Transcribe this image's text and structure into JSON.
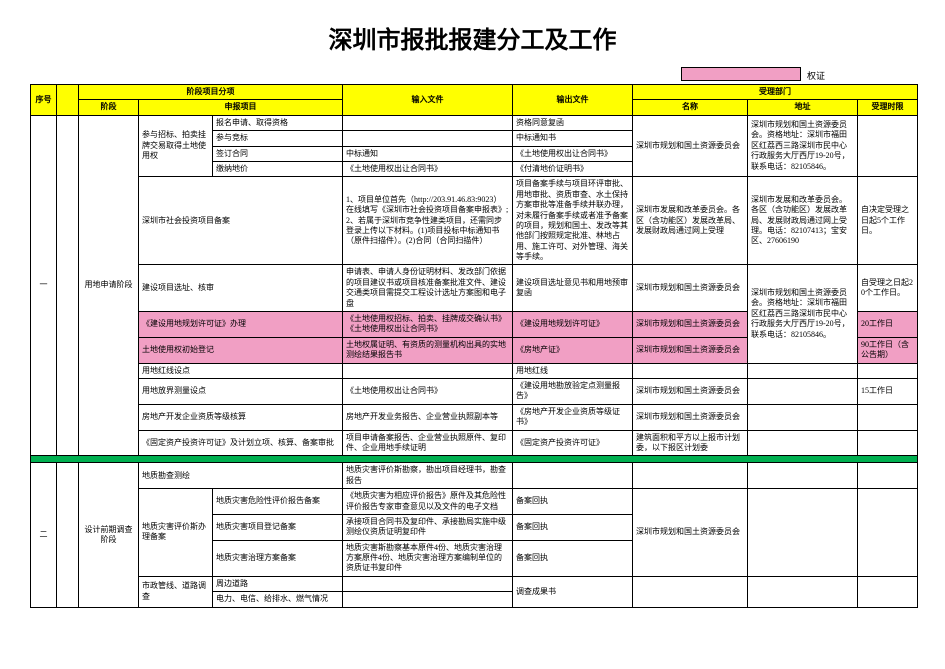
{
  "title": "深圳市报批报建分工及工作",
  "badge_label": "权证",
  "headers": {
    "seq": "序号",
    "stage_group": "阶段项目分项",
    "stage": "阶段",
    "item": "申报项目",
    "input": "输入文件",
    "output": "输出文件",
    "dept_group": "受理部门",
    "dept": "名称",
    "addr": "地址",
    "time": "受理时限"
  },
  "stage1": "用地申请阶段",
  "stage2": "设计前期调查阶段",
  "r1": {
    "sub": "参与招标、拍卖挂牌交易取得土地使用权",
    "item": "报名申请、取得资格",
    "output": "资格同意复函"
  },
  "r2": {
    "item": "参与竞标",
    "output": "中标通知书",
    "dept": "深圳市规划和国土资源委员会",
    "addr": "深圳市规划和国土资源委员会。资格地址：深圳市福田区红荔西三路深圳市民中心行政服务大厅西厅19-20号，联系电话：82105846。"
  },
  "r3": {
    "item": "签订合同",
    "input": "中标通知",
    "output": "《土地使用权出让合同书》"
  },
  "r4": {
    "item": "缴纳地价",
    "input": "《土地使用权出让合同书》",
    "output": "《付清地价证明书》"
  },
  "r5": {
    "item": "深圳市社会投资项目备案",
    "input": "1、项目单位首先（http://203.91.46.83:9023）在线填写《深圳市社会投资项目备案申报表》;2、若属于深圳市竞争性建类项目，还需同步登录上传以下材料。(1)项目投标中标通知书（原件扫描件）。(2)合同（合同扫描件）",
    "output": "项目备案手续与项目环评审批、用地审批、资质审查、水土保持方案审批等准备手续并联办理，对未履行备案手续或者准予备案的项目，规划和国土、发改等其他部门按照规定批准、林地占用、施工许可、对外管理、海关等手续。",
    "dept": "深圳市发展和改革委员会。各区（含功能区）发展改革局、发展财政局通过网上受理",
    "addr": "深圳市发展和改革委员会。各区（含功能区）发展改革局、发展财政局通过网上受理。电话：82107413；宝安区、27606190",
    "time": "自决定受理之日起5个工作日。"
  },
  "r6": {
    "item": "建设项目选址、核审",
    "input": "申请表、申请人身份证明材料、发改部门依据的项目建议书或项目核准备案批准文件、建设交通类项目需提交工程设计选址方案图和电子盘",
    "output": "建设项目选址意见书和用地预审复函",
    "dept": "深圳市规划和国土资源委员会",
    "addr": "深圳市规划和国土资源委员会。资格地址：深圳市福田区红荔西三路深圳市民中心行政服务大厅西厅19-20号，联系电话：82105846。",
    "time": "自受理之日起20个工作日。"
  },
  "r7": {
    "item": "《建设用地规划许可证》办理",
    "input": "《土地使用权招标、拍卖、挂牌成交确认书》《土地使用权出让合同书》",
    "output": "《建设用地规划许可证》",
    "dept": "深圳市规划和国土资源委员会",
    "time": "20工作日"
  },
  "r8": {
    "item": "土地使用权初始登记",
    "input": "土地权属证明、有资质的测量机构出具的实地测绘结果报告书",
    "output": "《房地产证》",
    "dept": "深圳市规划和国土资源委员会",
    "time": "90工作日（含公告期）"
  },
  "r9": {
    "item": "用地红线设点",
    "output": "用地红线"
  },
  "r10": {
    "item": "用地放界测量设点",
    "input": "《土地使用权出让合同书》",
    "output": "《建设用地勘放验定点测量报告》",
    "dept": "深圳市规划和国土资源委员会",
    "time": "15工作日"
  },
  "r11": {
    "item": "房地产开发企业资质等级核算",
    "input": "房地产开发业务报告、企业营业执照副本等",
    "output": "《房地产开发企业资质等级证书》",
    "dept": "深圳市规划和国土资源委员会"
  },
  "r12": {
    "item": "《固定资产投资许可证》及计划立项、核算、备案审批",
    "input": "项目申请备案报告、企业营业执照原件、复印件、企业用地手续证明",
    "output": "《固定资产投资许可证》",
    "dept": "建筑面积和平方以上报市计划委，以下报区计划委"
  },
  "r13": {
    "item": "地质勘查测绘",
    "input": "地质灾害评价斯勘察，勘出项目经理书，勘查报告"
  },
  "r14": {
    "sub": "地质灾害评价斯办理备案",
    "item": "地质灾害危险性评价报告备案",
    "input": "《地质灾害为相应评价报告》原件及其危险性评价报告专家审查意见以及文件的电子文档",
    "output": "备案回执",
    "dept": "深圳市规划和国土资源委员会"
  },
  "r15": {
    "item": "地质灾害项目登记备案",
    "input": "承接项目合同书及复印件、承接勘局实施中级测绘仪资质证明复印件",
    "output": "备案回执"
  },
  "r16": {
    "item": "地质灾害治理方案备案",
    "input": "地质灾害斯勘察基本原件4份、地质灾害治理方案原件4份、地质灾害治理方案编制单位的资质证书复印件",
    "output": "备案回执"
  },
  "r17": {
    "sub": "市政管线、道路调查",
    "item": "周边道路",
    "output": ""
  },
  "r18": {
    "item": "电力、电信、给排水、燃气情况",
    "output": "调查成果书"
  }
}
